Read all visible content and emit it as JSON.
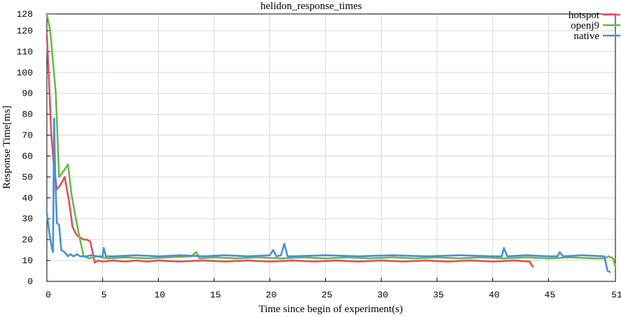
{
  "chart_data": {
    "type": "line",
    "title": "helidon_response_times",
    "xlabel": "Time since begin of experiment(s)",
    "ylabel": "Response Time[ms]",
    "xlim": [
      0,
      51
    ],
    "ylim": [
      0,
      128
    ],
    "xticks": [
      0,
      5,
      10,
      15,
      20,
      25,
      30,
      35,
      40,
      45,
      51
    ],
    "yticks": [
      0,
      10,
      20,
      30,
      40,
      50,
      60,
      70,
      80,
      90,
      100,
      110,
      120,
      128
    ],
    "grid": true,
    "legend": "top-right",
    "series": [
      {
        "name": "hotspot",
        "color": "#e0505a",
        "x": [
          0,
          0.2,
          0.4,
          0.6,
          0.9,
          1.2,
          1.6,
          2.0,
          2.3,
          2.7,
          3.0,
          3.3,
          3.6,
          3.9,
          4.1,
          4.3,
          4.6,
          5.0,
          6,
          7,
          8,
          9,
          10,
          12,
          14,
          16,
          18,
          20,
          22,
          24,
          26,
          28,
          30,
          32,
          34,
          36,
          38,
          40,
          42,
          43.3,
          43.6
        ],
        "y": [
          118,
          95,
          70,
          57,
          44,
          46,
          50,
          38,
          26,
          22,
          21,
          20,
          20,
          19,
          14,
          9,
          10,
          9.5,
          10,
          9.5,
          10,
          9.5,
          10,
          9.5,
          10,
          9.5,
          10,
          9.5,
          10,
          9.5,
          10,
          9.5,
          10,
          9.5,
          10,
          9.5,
          10,
          9.5,
          10,
          9.5,
          7
        ]
      },
      {
        "name": "openj9",
        "color": "#6ab84a",
        "x": [
          0,
          0.3,
          0.8,
          1.1,
          1.4,
          1.9,
          2.2,
          2.5,
          2.9,
          3.3,
          3.8,
          4.5,
          5.5,
          7,
          9,
          11,
          13,
          13.4,
          13.7,
          15,
          17,
          19,
          21,
          23,
          25,
          27,
          29,
          31,
          33,
          35,
          37,
          39,
          41,
          43,
          45,
          47,
          49,
          50,
          50.4,
          50.8,
          51
        ],
        "y": [
          128,
          120,
          90,
          50,
          52,
          56,
          42,
          33,
          22,
          12,
          11,
          12,
          11,
          11.5,
          11,
          11.5,
          12,
          14,
          11,
          11.5,
          11,
          11.5,
          11,
          11.5,
          11,
          11.5,
          11,
          11.5,
          11,
          11.5,
          11,
          11.5,
          11,
          11.5,
          11,
          11.5,
          11,
          11,
          12,
          11,
          7
        ]
      },
      {
        "name": "native",
        "color": "#4a8fd4",
        "x": [
          0,
          0.25,
          0.45,
          0.55,
          0.65,
          0.75,
          0.9,
          1.1,
          1.3,
          1.6,
          1.9,
          2.1,
          2.4,
          2.7,
          3.0,
          3.5,
          4.0,
          4.6,
          5.0,
          5.1,
          5.3,
          6,
          8,
          10,
          12,
          14,
          16,
          18,
          20,
          20.3,
          20.6,
          21.0,
          21.3,
          21.6,
          22,
          25,
          28,
          31,
          34,
          37,
          40,
          40.8,
          41.0,
          41.3,
          43,
          45,
          45.8,
          46.0,
          46.3,
          48,
          50,
          50.3,
          50.5
        ],
        "y": [
          33,
          22,
          16,
          14,
          78,
          50,
          28,
          27,
          15,
          14,
          12,
          13,
          12,
          13,
          12,
          12,
          12.5,
          12,
          12,
          16,
          12,
          12,
          12.5,
          12,
          12.5,
          12,
          12.5,
          12,
          12.5,
          15,
          12,
          12.5,
          18,
          12,
          12,
          12.5,
          12,
          12.5,
          12,
          12.5,
          12,
          12,
          16,
          12,
          12.5,
          12,
          12,
          14,
          12,
          12.5,
          12,
          5,
          4.5
        ]
      }
    ]
  }
}
